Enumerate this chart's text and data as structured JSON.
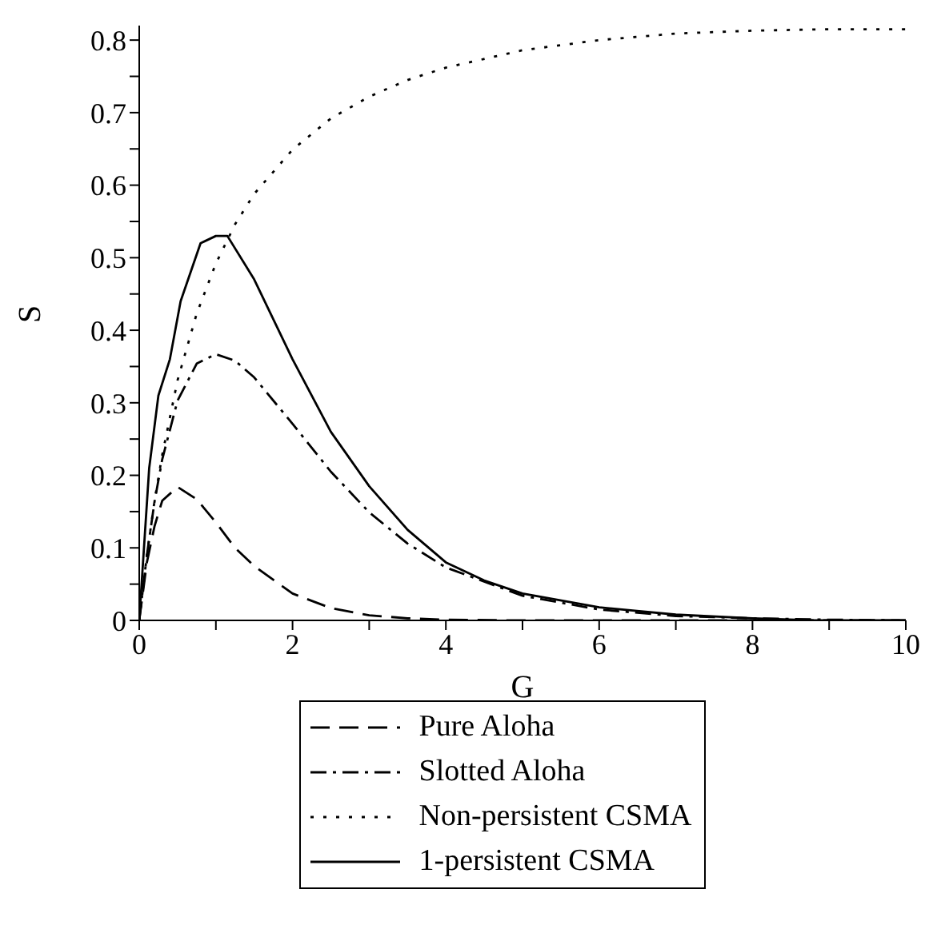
{
  "chart_data": {
    "type": "line",
    "xlabel": "G",
    "ylabel": "S",
    "xlim": [
      0,
      10
    ],
    "ylim": [
      0,
      0.82
    ],
    "xticks": [
      0,
      {
        "value": 1,
        "label": null
      },
      2,
      {
        "value": 3,
        "label": null
      },
      4,
      {
        "value": 5,
        "label": null
      },
      6,
      {
        "value": 7,
        "label": null
      },
      8,
      {
        "value": 9,
        "label": null
      },
      10
    ],
    "yticks": [
      0,
      {
        "value": 0.05,
        "label": null
      },
      0.1,
      {
        "value": 0.15,
        "label": null
      },
      0.2,
      {
        "value": 0.25,
        "label": null
      },
      0.3,
      {
        "value": 0.35,
        "label": null
      },
      0.4,
      {
        "value": 0.45,
        "label": null
      },
      0.5,
      {
        "value": 0.55,
        "label": null
      },
      0.6,
      {
        "value": 0.65,
        "label": null
      },
      0.7,
      {
        "value": 0.75,
        "label": null
      },
      0.8
    ],
    "legend": "bottom",
    "marker": "none",
    "series": [
      {
        "name": "Pure Aloha",
        "color": "#000000",
        "line_style": "dashed",
        "x": [
          0,
          0.1,
          0.2,
          0.3,
          0.5,
          0.75,
          1,
          1.25,
          1.5,
          2,
          2.5,
          3,
          3.5,
          4,
          5,
          6,
          7,
          8,
          9,
          10
        ],
        "values": [
          0,
          0.08,
          0.13,
          0.165,
          0.184,
          0.167,
          0.135,
          0.1,
          0.075,
          0.037,
          0.017,
          0.007,
          0.003,
          0.001,
          0,
          0,
          0,
          0,
          0,
          0
        ]
      },
      {
        "name": "Slotted Aloha",
        "color": "#000000",
        "line_style": "dashdot",
        "x": [
          0,
          0.1,
          0.2,
          0.3,
          0.5,
          0.75,
          1,
          1.25,
          1.5,
          2,
          2.5,
          3,
          3.5,
          4,
          5,
          6,
          7,
          8,
          9,
          10
        ],
        "values": [
          0,
          0.09,
          0.164,
          0.222,
          0.303,
          0.354,
          0.367,
          0.358,
          0.335,
          0.271,
          0.205,
          0.149,
          0.106,
          0.073,
          0.034,
          0.015,
          0.006,
          0.003,
          0.001,
          0
        ]
      },
      {
        "name": "Non-persistent CSMA",
        "color": "#000000",
        "line_style": "dotted",
        "x": [
          0,
          0.1,
          0.2,
          0.3,
          0.5,
          0.75,
          1,
          1.25,
          1.5,
          2,
          2.5,
          3,
          3.5,
          4,
          5,
          6,
          7,
          8,
          9,
          10
        ],
        "values": [
          0,
          0.09,
          0.165,
          0.228,
          0.331,
          0.423,
          0.492,
          0.546,
          0.588,
          0.649,
          0.692,
          0.722,
          0.745,
          0.762,
          0.786,
          0.8,
          0.809,
          0.813,
          0.815,
          0.815
        ]
      },
      {
        "name": "1-persistent CSMA",
        "color": "#000000",
        "line_style": "solid",
        "x": [
          0,
          0.13,
          0.25,
          0.4,
          0.54,
          0.8,
          1,
          1.15,
          1.5,
          2,
          2.5,
          3,
          3.5,
          4,
          4.5,
          5,
          6,
          7,
          8,
          8.8,
          10
        ],
        "values": [
          0,
          0.21,
          0.31,
          0.36,
          0.44,
          0.52,
          0.53,
          0.53,
          0.47,
          0.36,
          0.26,
          0.185,
          0.125,
          0.08,
          0.055,
          0.037,
          0.018,
          0.008,
          0.003,
          0,
          0
        ]
      }
    ]
  }
}
